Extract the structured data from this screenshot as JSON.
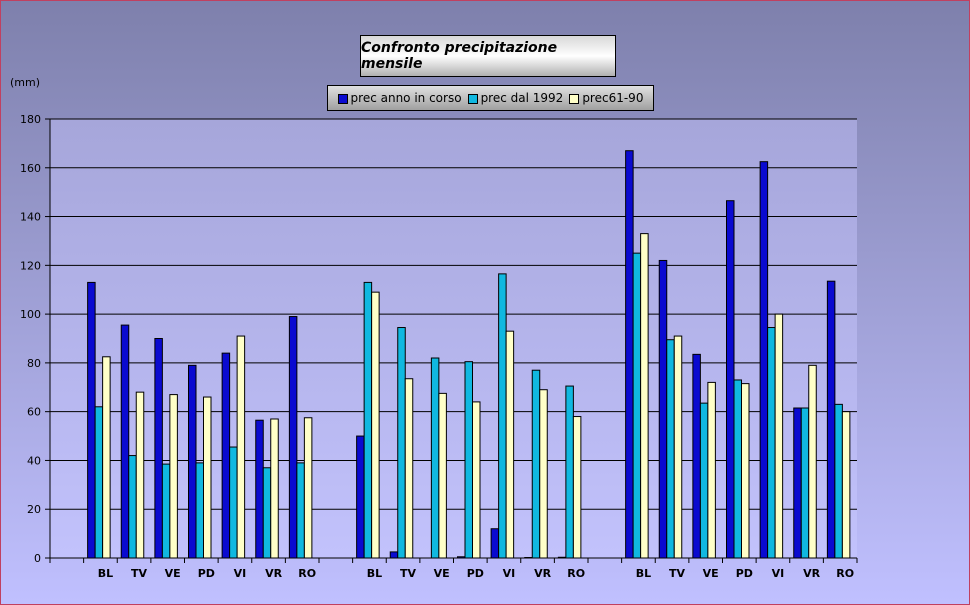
{
  "chart_data": {
    "type": "bar",
    "title": "Confronto precipitazione mensile",
    "ylabel": "(mm)",
    "xlabel": "",
    "ylim": [
      0,
      180
    ],
    "yticks": [
      0,
      20,
      40,
      60,
      80,
      100,
      120,
      140,
      160,
      180
    ],
    "grid": true,
    "legend_position": "top-center",
    "categories": [
      "",
      "BL",
      "TV",
      "VE",
      "PD",
      "VI",
      "VR",
      "RO",
      "",
      "BL",
      "TV",
      "VE",
      "PD",
      "VI",
      "VR",
      "RO",
      "",
      "BL",
      "TV",
      "VE",
      "PD",
      "VI",
      "VR",
      "RO"
    ],
    "series": [
      {
        "name": "prec anno in corso",
        "color": "#0a0ad0",
        "values": [
          null,
          113,
          95.5,
          90,
          79,
          84,
          56.5,
          99,
          null,
          50,
          2.5,
          0,
          0.5,
          12,
          0.2,
          0.3,
          null,
          167,
          122,
          83.5,
          146.5,
          162.5,
          61.5,
          113.5
        ]
      },
      {
        "name": "prec dal 1992",
        "color": "#10b8e0",
        "values": [
          null,
          62,
          42,
          38.5,
          39,
          45.5,
          37,
          39,
          null,
          113,
          94.5,
          82,
          80.5,
          116.5,
          77,
          70.5,
          null,
          125,
          89.5,
          63.5,
          73,
          94.5,
          61.5,
          63
        ]
      },
      {
        "name": "prec61-90",
        "color": "#ffffc8",
        "values": [
          null,
          82.5,
          68,
          67,
          66,
          91,
          57,
          57.5,
          null,
          109,
          73.5,
          67.5,
          64,
          93,
          69,
          58,
          null,
          133,
          91,
          72,
          71.5,
          100,
          79,
          60
        ]
      }
    ]
  }
}
